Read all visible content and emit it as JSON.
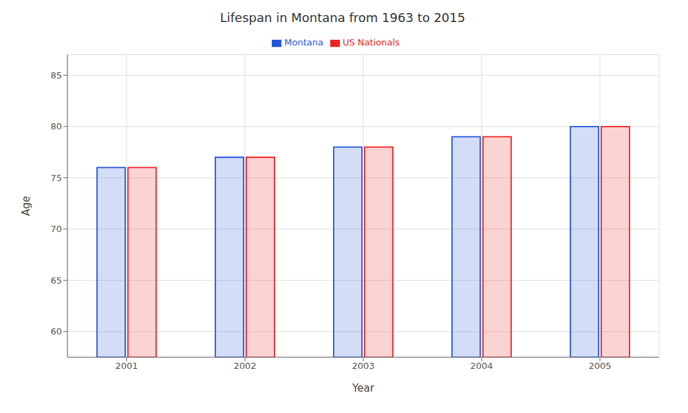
{
  "chart_data": {
    "type": "bar",
    "title": "Lifespan in Montana from 1963 to 2015",
    "x_label": "Year",
    "y_label": "Age",
    "categories": [
      "2001",
      "2002",
      "2003",
      "2004",
      "2005"
    ],
    "series": [
      {
        "name": "Montana",
        "color": "#2255dd",
        "values": [
          76.0,
          77.0,
          78.0,
          79.0,
          80.0
        ]
      },
      {
        "name": "US Nationals",
        "color": "#ee2222",
        "values": [
          76.0,
          77.0,
          78.0,
          79.0,
          80.0
        ]
      }
    ],
    "ylim": [
      57.5,
      87
    ],
    "yticks": [
      60,
      65,
      70,
      75,
      80,
      85
    ],
    "grid": true,
    "legend": "upper center"
  }
}
